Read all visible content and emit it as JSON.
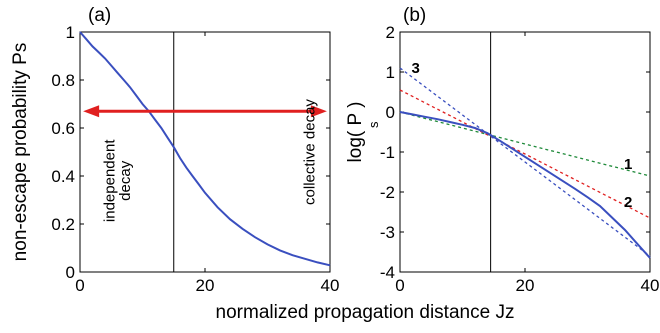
{
  "xlabel": "normalized propagation distance Jz",
  "chart_data": [
    {
      "type": "line",
      "panel_label": "(a)",
      "ylabel": "non-escape probability Ps",
      "xlabel": "",
      "xlim": [
        0,
        40
      ],
      "ylim": [
        0,
        1
      ],
      "xticks": [
        0,
        20,
        40
      ],
      "yticks": [
        0,
        0.2,
        0.4,
        0.6,
        0.8,
        1
      ],
      "ytick_labels": [
        "0",
        "0.2",
        "0.4",
        "0.6",
        "0.8",
        "1"
      ],
      "vline_x": 15,
      "grid": false,
      "series": [
        {
          "color": "#3a4fbf",
          "x": [
            0,
            1,
            2,
            3,
            4,
            5,
            6,
            7,
            8,
            9,
            10,
            11,
            12,
            13,
            14,
            15,
            16,
            17,
            18,
            19,
            20,
            22,
            24,
            26,
            28,
            30,
            32,
            34,
            36,
            38,
            40
          ],
          "y": [
            1.0,
            0.97,
            0.94,
            0.915,
            0.89,
            0.86,
            0.83,
            0.8,
            0.77,
            0.735,
            0.7,
            0.67,
            0.635,
            0.6,
            0.56,
            0.52,
            0.475,
            0.435,
            0.4,
            0.365,
            0.33,
            0.27,
            0.22,
            0.18,
            0.145,
            0.115,
            0.09,
            0.07,
            0.055,
            0.04,
            0.028
          ]
        }
      ],
      "arrow": {
        "x_start": 0.5,
        "x_end": 39.5,
        "y": 0.67,
        "color": "#e02020"
      },
      "annotations": [
        {
          "text": "independent",
          "x": 5.5,
          "y": 0.38
        },
        {
          "text": "decay",
          "x": 8.0,
          "y": 0.38
        },
        {
          "text": "collective decay",
          "x": 37.5,
          "y": 0.5
        }
      ]
    },
    {
      "type": "line",
      "panel_label": "(b)",
      "ylabel": "log( P )",
      "ylabel_sub": "s",
      "xlabel": "",
      "xlim": [
        0,
        40
      ],
      "ylim": [
        -4,
        2
      ],
      "xticks": [
        0,
        20,
        40
      ],
      "yticks": [
        -4,
        -3,
        -2,
        -1,
        0,
        1,
        2
      ],
      "vline_x": 14.5,
      "grid": false,
      "series": [
        {
          "label": "",
          "color": "#3a4fbf",
          "style": "solid",
          "x": [
            0,
            2,
            4,
            6,
            8,
            10,
            12,
            14,
            16,
            18,
            20,
            22,
            24,
            26,
            28,
            30,
            32,
            34,
            36,
            38,
            40
          ],
          "y": [
            0.0,
            -0.06,
            -0.12,
            -0.18,
            -0.25,
            -0.32,
            -0.4,
            -0.53,
            -0.72,
            -0.92,
            -1.12,
            -1.32,
            -1.52,
            -1.72,
            -1.92,
            -2.13,
            -2.35,
            -2.65,
            -2.95,
            -3.3,
            -3.65
          ]
        },
        {
          "label": "1",
          "color": "#1f8a3a",
          "style": "dashed",
          "x": [
            0,
            40
          ],
          "y": [
            0.0,
            -1.6
          ]
        },
        {
          "label": "2",
          "color": "#e02020",
          "style": "dashed",
          "x": [
            0,
            40
          ],
          "y": [
            0.55,
            -2.65
          ]
        },
        {
          "label": "3",
          "color": "#3a4fbf",
          "style": "dashed",
          "x": [
            0,
            40
          ],
          "y": [
            1.1,
            -3.6
          ]
        }
      ],
      "series_labels": [
        {
          "text": "3",
          "x": 2.5,
          "y": 1.1
        },
        {
          "text": "1",
          "x": 36.5,
          "y": -1.3
        },
        {
          "text": "2",
          "x": 36.5,
          "y": -2.25
        }
      ]
    }
  ]
}
